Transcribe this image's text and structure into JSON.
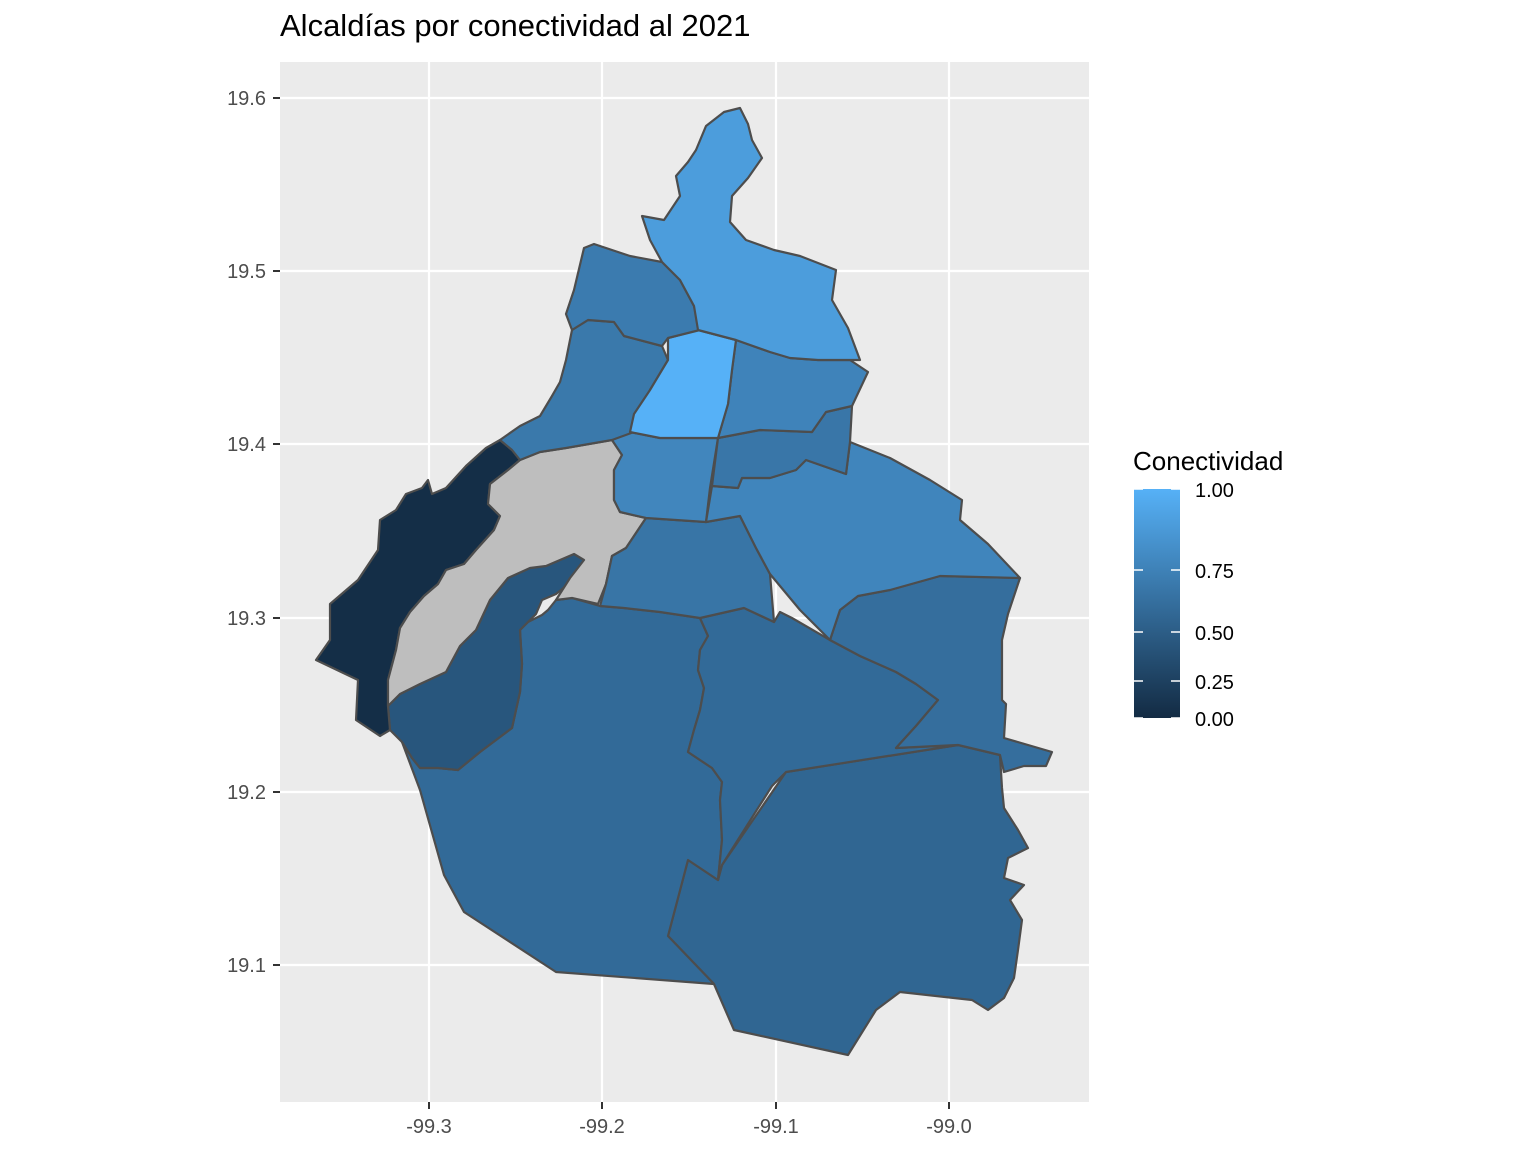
{
  "title": "Alcaldías por conectividad al 2021",
  "axes": {
    "x_ticks": [
      "-99.3",
      "-99.2",
      "-99.1",
      "-99.0"
    ],
    "y_ticks": [
      "19.6",
      "19.5",
      "19.4",
      "19.3",
      "19.2",
      "19.1"
    ]
  },
  "legend": {
    "title": "Conectividad",
    "labels": [
      "1.00",
      "0.75",
      "0.50",
      "0.25",
      "0.00"
    ],
    "color_low": "#132B43",
    "color_high": "#56B1F7",
    "na_color": "#BEBEBE"
  },
  "colors": {
    "panel_background": "#EBEBEB",
    "grid": "#FFFFFF",
    "border": "#4D4D4D"
  },
  "regions": [
    {
      "id": "gustavo-a-madero",
      "value": 0.85
    },
    {
      "id": "azcapotzalco",
      "value": 0.6
    },
    {
      "id": "miguel-hidalgo",
      "value": 0.58
    },
    {
      "id": "cuauhtemoc",
      "value": 1.0
    },
    {
      "id": "venustiano-carranza",
      "value": 0.66
    },
    {
      "id": "iztacalco",
      "value": 0.56
    },
    {
      "id": "benito-juarez",
      "value": 0.68
    },
    {
      "id": "iztapalapa",
      "value": 0.67
    },
    {
      "id": "coyoacan",
      "value": 0.55
    },
    {
      "id": "alvaro-obregon",
      "value": null
    },
    {
      "id": "cuajimalpa",
      "value": 0.02
    },
    {
      "id": "magdalena-contreras",
      "value": 0.32
    },
    {
      "id": "tlalpan",
      "value": 0.47
    },
    {
      "id": "xochimilco",
      "value": 0.47
    },
    {
      "id": "tlahuac",
      "value": 0.5
    },
    {
      "id": "milpa-alta",
      "value": 0.44
    }
  ]
}
